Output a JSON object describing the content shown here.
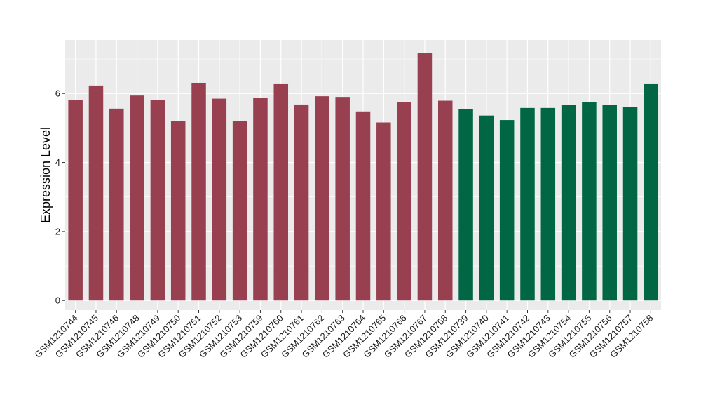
{
  "chart_data": {
    "type": "bar",
    "title": "",
    "xlabel": "",
    "ylabel": "Expression Level",
    "ylim": [
      -0.28,
      7.55
    ],
    "yticks": [
      0,
      2,
      4,
      6
    ],
    "grid": true,
    "legend": "none",
    "categories": [
      "GSM1210744",
      "GSM1210745",
      "GSM1210746",
      "GSM1210748",
      "GSM1210749",
      "GSM1210750",
      "GSM1210751",
      "GSM1210752",
      "GSM1210753",
      "GSM1210759",
      "GSM1210760",
      "GSM1210761",
      "GSM1210762",
      "GSM1210763",
      "GSM1210764",
      "GSM1210765",
      "GSM1210766",
      "GSM1210767",
      "GSM1210768",
      "GSM1210739",
      "GSM1210740",
      "GSM1210741",
      "GSM1210742",
      "GSM1210743",
      "GSM1210754",
      "GSM1210755",
      "GSM1210756",
      "GSM1210757",
      "GSM1210758"
    ],
    "values": [
      5.81,
      6.23,
      5.56,
      5.94,
      5.81,
      5.21,
      6.31,
      5.85,
      5.21,
      5.87,
      6.29,
      5.68,
      5.92,
      5.9,
      5.48,
      5.16,
      5.75,
      7.18,
      5.79,
      5.54,
      5.36,
      5.23,
      5.58,
      5.58,
      5.66,
      5.74,
      5.66,
      5.6,
      6.29
    ],
    "groups": [
      "a",
      "a",
      "a",
      "a",
      "a",
      "a",
      "a",
      "a",
      "a",
      "a",
      "a",
      "a",
      "a",
      "a",
      "a",
      "a",
      "a",
      "a",
      "a",
      "b",
      "b",
      "b",
      "b",
      "b",
      "b",
      "b",
      "b",
      "b",
      "b"
    ],
    "colors": {
      "a": "#98404f",
      "b": "#006644",
      "panel": "#ebebeb",
      "grid": "#ffffff",
      "tick": "#333333"
    }
  }
}
